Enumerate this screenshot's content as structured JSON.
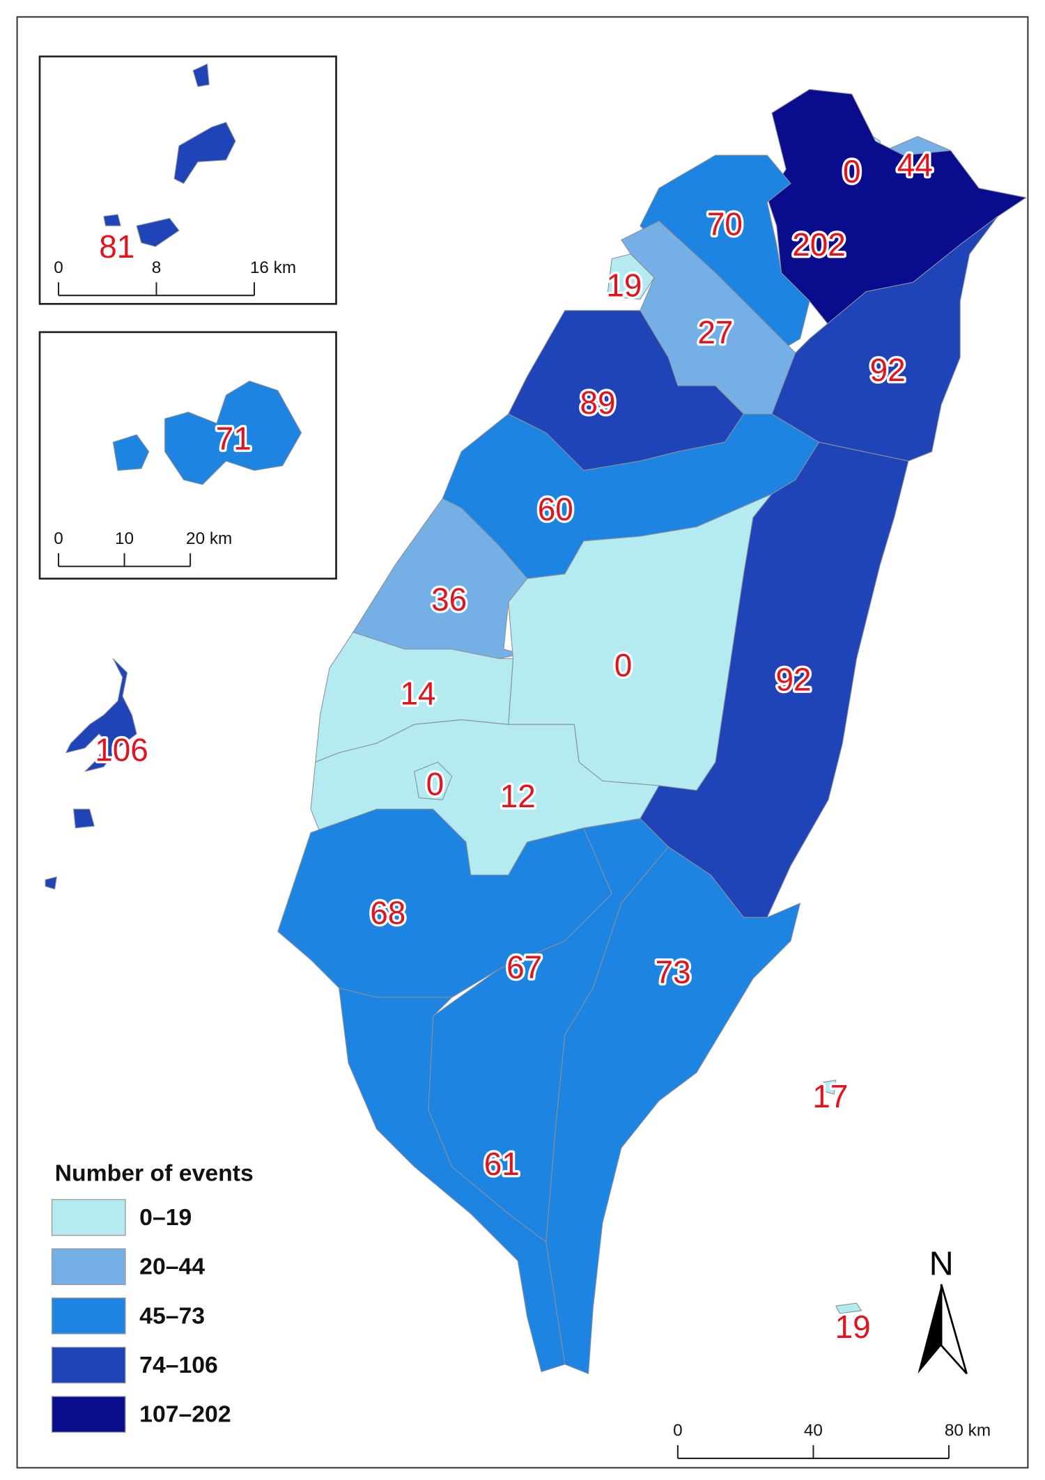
{
  "map": {
    "legend": {
      "title": "Number of events",
      "classes": [
        {
          "label": "0–19",
          "color": "#b4ebf0"
        },
        {
          "label": "20–44",
          "color": "#74b0e6"
        },
        {
          "label": "45–73",
          "color": "#1e84e2"
        },
        {
          "label": "74–106",
          "color": "#1f44b8"
        },
        {
          "label": "107–202",
          "color": "#0a0c8e"
        }
      ]
    },
    "regions": [
      {
        "value": 0,
        "color": "#b4ebf0"
      },
      {
        "value": 44,
        "color": "#74b0e6"
      },
      {
        "value": 202,
        "color": "#0a0c8e"
      },
      {
        "value": 70,
        "color": "#1e84e2"
      },
      {
        "value": 19,
        "color": "#b4ebf0"
      },
      {
        "value": 27,
        "color": "#74b0e6"
      },
      {
        "value": 92,
        "color": "#1f44b8"
      },
      {
        "value": 89,
        "color": "#1f44b8"
      },
      {
        "value": 60,
        "color": "#1e84e2"
      },
      {
        "value": 36,
        "color": "#74b0e6"
      },
      {
        "value": 0,
        "color": "#b4ebf0"
      },
      {
        "value": 92,
        "color": "#1f44b8"
      },
      {
        "value": 14,
        "color": "#b4ebf0"
      },
      {
        "value": 12,
        "color": "#b4ebf0"
      },
      {
        "value": 0,
        "color": "#b4ebf0"
      },
      {
        "value": 68,
        "color": "#1e84e2"
      },
      {
        "value": 67,
        "color": "#1e84e2"
      },
      {
        "value": 73,
        "color": "#1e84e2"
      },
      {
        "value": 61,
        "color": "#1e84e2"
      },
      {
        "value": 17,
        "color": "#b4ebf0"
      },
      {
        "value": 19,
        "color": "#b4ebf0"
      },
      {
        "value": 106,
        "color": "#1f44b8"
      },
      {
        "value": 81,
        "color": "#1f44b8"
      },
      {
        "value": 71,
        "color": "#1e84e2"
      }
    ],
    "scale_bars": [
      {
        "labels": [
          "0",
          "40",
          "80 km"
        ]
      },
      {
        "labels": [
          "0",
          "8",
          "16 km"
        ]
      },
      {
        "labels": [
          "0",
          "10",
          "20 km"
        ]
      }
    ],
    "north_label": "N"
  }
}
